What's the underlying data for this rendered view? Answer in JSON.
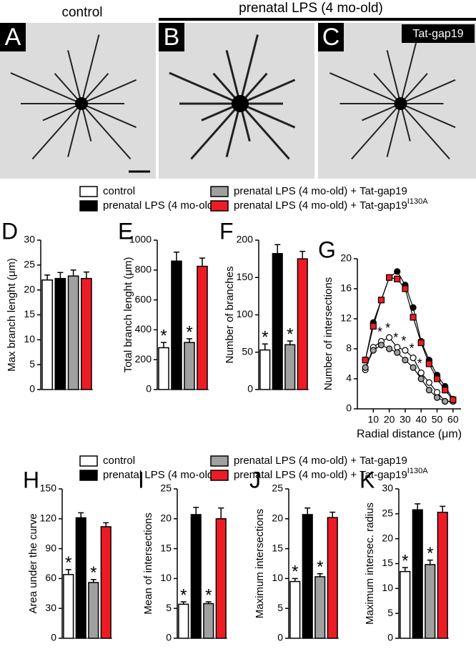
{
  "images": {
    "header_control": "control",
    "header_lps": "prenatal LPS (4 mo-old)",
    "panels": [
      {
        "letter": "A"
      },
      {
        "letter": "B"
      },
      {
        "letter": "C",
        "tag": "Tat-gap19"
      }
    ]
  },
  "legends": [
    {
      "items": [
        {
          "name": "control",
          "color": "#ffffff"
        },
        {
          "name": "prenatal LPS (4 mo-old)",
          "color": "#000000"
        },
        {
          "name": "prenatal LPS (4 mo-old) + Tat-gap19",
          "color": "#a0a0a0"
        },
        {
          "name": "prenatal LPS (4 mo-old) + Tat-gap19",
          "superscript": "I130A",
          "color": "#ed1c24"
        }
      ]
    },
    {
      "items": [
        {
          "name": "control",
          "color": "#ffffff"
        },
        {
          "name": "prenatal LPS (4 mo-old)",
          "color": "#000000"
        },
        {
          "name": "prenatal LPS (4 mo-old) + Tat-gap19",
          "color": "#a0a0a0"
        },
        {
          "name": "prenatal LPS (4 mo-old) + Tat-gap19",
          "superscript": "I130A",
          "color": "#ed1c24"
        }
      ]
    }
  ],
  "chart_data": [
    {
      "type": "bar",
      "panel": "D",
      "ylabel": "Max branch lenght (μm)",
      "categories": [
        null,
        null,
        null,
        null
      ],
      "values": [
        22,
        22.3,
        22.8,
        22.3
      ],
      "errors": [
        1,
        1.2,
        1.2,
        1.3
      ],
      "colors": [
        "#ffffff",
        "#000000",
        "#a0a0a0",
        "#ed1c24"
      ],
      "ylim": [
        0,
        30
      ],
      "yticks": [
        0,
        5,
        10,
        15,
        20,
        25,
        30
      ]
    },
    {
      "type": "bar",
      "panel": "E",
      "ylabel": "Total branch lenght (μm)",
      "categories": [
        null,
        null,
        null,
        null
      ],
      "values": [
        280,
        860,
        315,
        825
      ],
      "errors": [
        35,
        60,
        25,
        55
      ],
      "annotations": [
        "*",
        null,
        "*",
        null
      ],
      "colors": [
        "#ffffff",
        "#000000",
        "#a0a0a0",
        "#ed1c24"
      ],
      "ylim": [
        0,
        1000
      ],
      "yticks": [
        0,
        200,
        400,
        600,
        800,
        1000
      ]
    },
    {
      "type": "bar",
      "panel": "F",
      "ylabel": "Number of branches",
      "categories": [
        null,
        null,
        null,
        null
      ],
      "values": [
        53,
        182,
        60,
        175
      ],
      "errors": [
        8,
        12,
        5,
        10
      ],
      "annotations": [
        "*",
        null,
        "*",
        null
      ],
      "colors": [
        "#ffffff",
        "#000000",
        "#a0a0a0",
        "#ed1c24"
      ],
      "ylim": [
        0,
        200
      ],
      "yticks": [
        0,
        50,
        100,
        150,
        200
      ]
    },
    {
      "type": "line",
      "panel": "G",
      "ylabel": "Number of intersections",
      "xlabel": "Radial distance (μm)",
      "x": [
        5,
        10,
        15,
        20,
        25,
        30,
        35,
        40,
        45,
        50,
        55,
        60
      ],
      "series": [
        {
          "name": "control",
          "color": "#ffffff",
          "marker": "circle",
          "values": [
            5.2,
            8.2,
            9.0,
            9.5,
            8.2,
            7.8,
            6.8,
            4.8,
            3.5,
            2.2,
            1.0,
            1.0
          ],
          "annotations": [
            null,
            null,
            "*",
            "*",
            "*",
            "*",
            "*",
            "*",
            null,
            null,
            null,
            null
          ]
        },
        {
          "name": "prenatal LPS (4 mo-old)",
          "color": "#000000",
          "marker": "circle",
          "values": [
            6.5,
            11.5,
            14.5,
            17.5,
            18.3,
            16.5,
            13.5,
            9.0,
            6.5,
            4.5,
            3.0,
            1.3
          ]
        },
        {
          "name": "prenatal LPS (4 mo-old) + Tat-gap19",
          "color": "#a0a0a0",
          "marker": "circle",
          "values": [
            5.5,
            7.8,
            8.5,
            8.0,
            7.5,
            6.5,
            5.5,
            4.0,
            2.5,
            1.5,
            1.0,
            1.0
          ]
        },
        {
          "name": "prenatal LPS (4 mo-old) + Tat-gap19",
          "color": "#ed1c24",
          "marker": "square",
          "values": [
            6.5,
            11.0,
            14.5,
            17.5,
            17.3,
            16.0,
            12.2,
            8.8,
            6.0,
            4.0,
            2.5,
            1.2
          ]
        }
      ],
      "xlim": [
        0,
        65
      ],
      "xticks": [
        10,
        20,
        30,
        40,
        50,
        60
      ],
      "ylim": [
        0,
        20
      ],
      "yticks": [
        0,
        4,
        8,
        12,
        16,
        20
      ]
    },
    {
      "type": "bar",
      "panel": "H",
      "ylabel": "Area under the curve",
      "categories": [
        null,
        null,
        null,
        null
      ],
      "values": [
        64,
        121,
        56,
        112
      ],
      "errors": [
        5,
        5,
        3,
        4
      ],
      "annotations": [
        "*",
        null,
        "*",
        null
      ],
      "colors": [
        "#ffffff",
        "#000000",
        "#a0a0a0",
        "#ed1c24"
      ],
      "ylim": [
        0,
        150
      ],
      "yticks": [
        0,
        30,
        60,
        90,
        120,
        150
      ]
    },
    {
      "type": "bar",
      "panel": "I",
      "ylabel": "Mean of intersections",
      "categories": [
        null,
        null,
        null,
        null
      ],
      "values": [
        5.7,
        20.7,
        5.8,
        20
      ],
      "errors": [
        0.4,
        1.2,
        0.3,
        1.8
      ],
      "annotations": [
        "*",
        null,
        "*",
        null
      ],
      "colors": [
        "#ffffff",
        "#000000",
        "#a0a0a0",
        "#ed1c24"
      ],
      "ylim": [
        0,
        25
      ],
      "yticks": [
        0,
        5,
        10,
        15,
        20,
        25
      ]
    },
    {
      "type": "bar",
      "panel": "J",
      "ylabel": "Maximum intersections",
      "categories": [
        null,
        null,
        null,
        null
      ],
      "values": [
        9.5,
        20.7,
        10.3,
        20.2
      ],
      "errors": [
        0.5,
        1.1,
        0.5,
        0.9
      ],
      "annotations": [
        "*",
        null,
        "*",
        null
      ],
      "colors": [
        "#ffffff",
        "#000000",
        "#a0a0a0",
        "#ed1c24"
      ],
      "ylim": [
        0,
        25
      ],
      "yticks": [
        0,
        5,
        10,
        15,
        20,
        25
      ]
    },
    {
      "type": "bar",
      "panel": "K",
      "ylabel": "Maximum intersec. radius",
      "categories": [
        null,
        null,
        null,
        null
      ],
      "values": [
        13.4,
        25.8,
        14.8,
        25.3
      ],
      "errors": [
        0.8,
        1.2,
        0.9,
        1.2
      ],
      "annotations": [
        "*",
        null,
        "*",
        null
      ],
      "colors": [
        "#ffffff",
        "#000000",
        "#a0a0a0",
        "#ed1c24"
      ],
      "ylim": [
        0,
        30
      ],
      "yticks": [
        0,
        5,
        10,
        15,
        20,
        25,
        30
      ]
    }
  ]
}
